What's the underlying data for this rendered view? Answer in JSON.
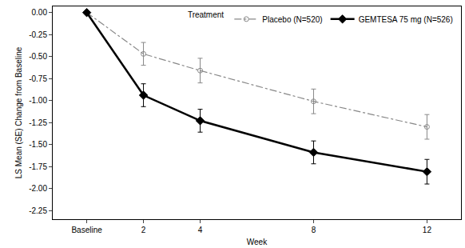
{
  "chart_data": {
    "type": "line",
    "x_label": "Week",
    "y_label": "LS Mean (SE) Change from Baseline",
    "legend_title": "Treatment",
    "legend": "top right",
    "grid": false,
    "x": [
      0,
      2,
      4,
      8,
      12
    ],
    "xlim": [
      -1.2,
      13.2
    ],
    "xticks": [
      {
        "value": 0,
        "label": "Baseline"
      },
      2,
      4,
      8,
      12
    ],
    "ylim": [
      -2.35,
      0.07
    ],
    "yticks": [
      {
        "value": 0,
        "label": "0.00"
      },
      -0.25,
      {
        "value": -0.5,
        "label": "-0.50"
      },
      -0.75,
      {
        "value": -1,
        "label": "-1.00"
      },
      -1.25,
      {
        "value": -1.5,
        "label": "-1.50"
      },
      -1.75,
      {
        "value": -2,
        "label": "-2.00"
      },
      -2.25
    ],
    "series": [
      {
        "name": "Placebo (N=520)",
        "color": "#888888",
        "marker": "circle-open",
        "line_style": "dashdot",
        "values": [
          0,
          -0.47,
          -0.66,
          -1.01,
          -1.3
        ],
        "errors": [
          0,
          0.13,
          0.14,
          0.14,
          0.14
        ]
      },
      {
        "name": "GEMTESA 75 mg (N=526)",
        "color": "#000000",
        "marker": "diamond",
        "line_style": "solid",
        "values": [
          0,
          -0.94,
          -1.23,
          -1.59,
          -1.81
        ],
        "errors": [
          0,
          0.13,
          0.13,
          0.13,
          0.14
        ]
      }
    ]
  }
}
